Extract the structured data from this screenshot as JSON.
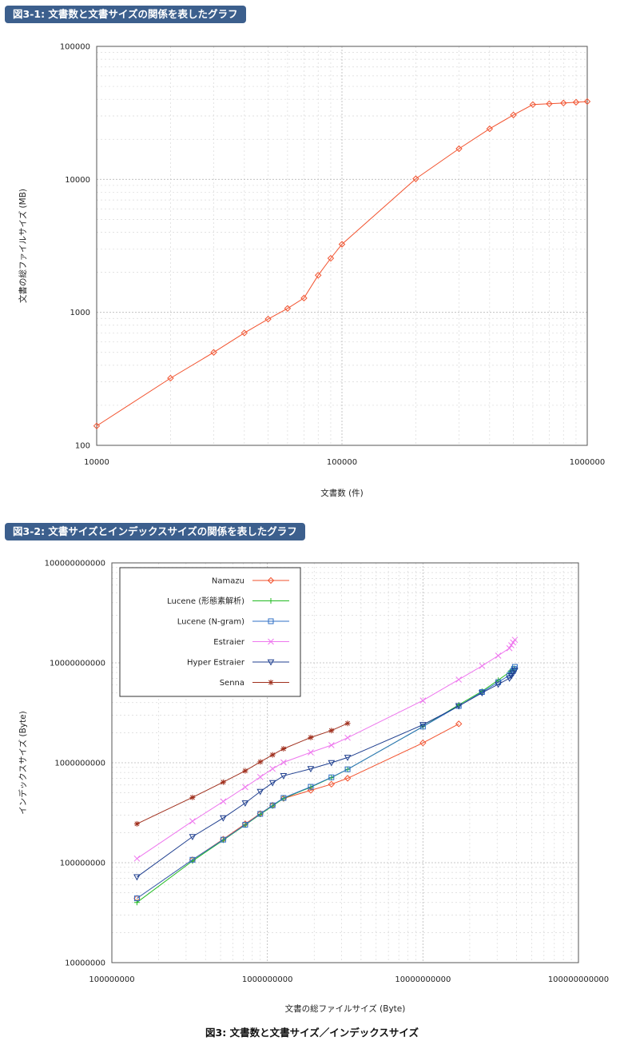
{
  "chart_data": [
    {
      "type": "line",
      "title": "図3-1: 文書数と文書サイズの関係を表したグラフ",
      "xlabel": "文書数 (件)",
      "ylabel": "文書の総ファイルサイズ (MB)",
      "xscale": "log",
      "yscale": "log",
      "xlim": [
        10000,
        1000000
      ],
      "ylim": [
        100,
        100000
      ],
      "xticks": [
        "10000",
        "100000",
        "1000000"
      ],
      "yticks": [
        "100",
        "1000",
        "10000",
        "100000"
      ],
      "grid": true,
      "series": [
        {
          "color": "#f2522e",
          "marker": "diamond",
          "x": [
            10000,
            20000,
            30000,
            40000,
            50000,
            60000,
            70000,
            80000,
            90000,
            100000,
            200000,
            300000,
            400000,
            500000,
            600000,
            700000,
            800000,
            900000,
            1000000
          ],
          "y": [
            140,
            320,
            500,
            700,
            890,
            1070,
            1280,
            1900,
            2550,
            3250,
            10100,
            17000,
            24000,
            30500,
            36500,
            37000,
            37500,
            38000,
            38500
          ]
        }
      ]
    },
    {
      "type": "line",
      "title": "図3-2: 文書サイズとインデックスサイズの関係を表したグラフ",
      "xlabel": "文書の総ファイルサイズ (Byte)",
      "ylabel": "インデックスサイズ (Byte)",
      "xscale": "log",
      "yscale": "log",
      "xlim": [
        100000000,
        100000000000
      ],
      "ylim": [
        10000000,
        100000000000
      ],
      "xticks": [
        "100000000",
        "1000000000",
        "10000000000",
        "100000000000"
      ],
      "yticks": [
        "10000000",
        "100000000",
        "1000000000",
        "10000000000",
        "100000000000"
      ],
      "grid": true,
      "legend": "top-left",
      "series": [
        {
          "name": "Namazu",
          "color": "#f2522e",
          "marker": "diamond",
          "x": [
            145000000,
            330000000,
            520000000,
            720000000,
            900000000,
            1080000000,
            1270000000,
            1900000000,
            2580000000,
            3280000000,
            10000000000,
            17000000000
          ],
          "y": [
            44000000,
            107000000,
            172000000,
            245000000,
            310000000,
            375000000,
            440000000,
            530000000,
            610000000,
            700000000,
            1580000000,
            2450000000
          ]
        },
        {
          "name": "Lucene (形態素解析)",
          "color": "#22bb22",
          "marker": "plus",
          "x": [
            145000000,
            330000000,
            520000000,
            720000000,
            900000000,
            1080000000,
            1270000000,
            1900000000,
            2580000000,
            3280000000,
            10000000000,
            17000000000,
            24000000000,
            30500000000,
            36500000000,
            37500000000,
            38500000000
          ],
          "y": [
            40000000,
            104000000,
            168000000,
            238000000,
            305000000,
            370000000,
            440000000,
            570000000,
            710000000,
            860000000,
            2300000000,
            3800000000,
            5200000000,
            6700000000,
            8200000000,
            8500000000,
            8800000000
          ]
        },
        {
          "name": "Lucene (N-gram)",
          "color": "#2f6fc4",
          "marker": "square",
          "x": [
            145000000,
            330000000,
            520000000,
            720000000,
            900000000,
            1080000000,
            1270000000,
            1900000000,
            2580000000,
            3280000000,
            10000000000,
            17000000000,
            24000000000,
            30500000000,
            36000000000,
            37000000000,
            38000000000,
            38500000000,
            39000000000
          ],
          "y": [
            44000000,
            107000000,
            170000000,
            240000000,
            308000000,
            375000000,
            445000000,
            575000000,
            715000000,
            860000000,
            2300000000,
            3700000000,
            5100000000,
            6400000000,
            7500000000,
            7900000000,
            8300000000,
            8700000000,
            9100000000
          ]
        },
        {
          "name": "Estraier",
          "color": "#ee77ee",
          "marker": "cross",
          "x": [
            145000000,
            330000000,
            520000000,
            720000000,
            900000000,
            1080000000,
            1270000000,
            1900000000,
            2580000000,
            3280000000,
            10000000000,
            17000000000,
            24000000000,
            30500000000,
            36000000000,
            37000000000,
            38000000000,
            39000000000
          ],
          "y": [
            110000000,
            260000000,
            410000000,
            570000000,
            720000000,
            870000000,
            1010000000,
            1270000000,
            1500000000,
            1780000000,
            4200000000,
            6800000000,
            9300000000,
            11800000000,
            14000000000,
            15000000000,
            16000000000,
            17000000000
          ]
        },
        {
          "name": "Hyper Estraier",
          "color": "#1f3f8f",
          "marker": "triangle-down",
          "x": [
            145000000,
            330000000,
            520000000,
            720000000,
            900000000,
            1080000000,
            1270000000,
            1900000000,
            2580000000,
            3280000000,
            10000000000,
            17000000000,
            24000000000,
            30500000000,
            36000000000,
            37000000000,
            38000000000,
            39000000000
          ],
          "y": [
            72000000,
            182000000,
            280000000,
            395000000,
            515000000,
            630000000,
            740000000,
            870000000,
            1000000000,
            1130000000,
            2400000000,
            3700000000,
            5000000000,
            6100000000,
            7000000000,
            7400000000,
            7900000000,
            8400000000
          ]
        },
        {
          "name": "Senna",
          "color": "#a0301e",
          "marker": "star",
          "x": [
            145000000,
            330000000,
            520000000,
            720000000,
            900000000,
            1080000000,
            1270000000,
            1900000000,
            2580000000,
            3280000000
          ],
          "y": [
            245000000,
            450000000,
            640000000,
            830000000,
            1020000000,
            1200000000,
            1380000000,
            1790000000,
            2100000000,
            2480000000
          ]
        }
      ]
    }
  ],
  "caption": "図3: 文書数と文書サイズ／インデックスサイズ"
}
